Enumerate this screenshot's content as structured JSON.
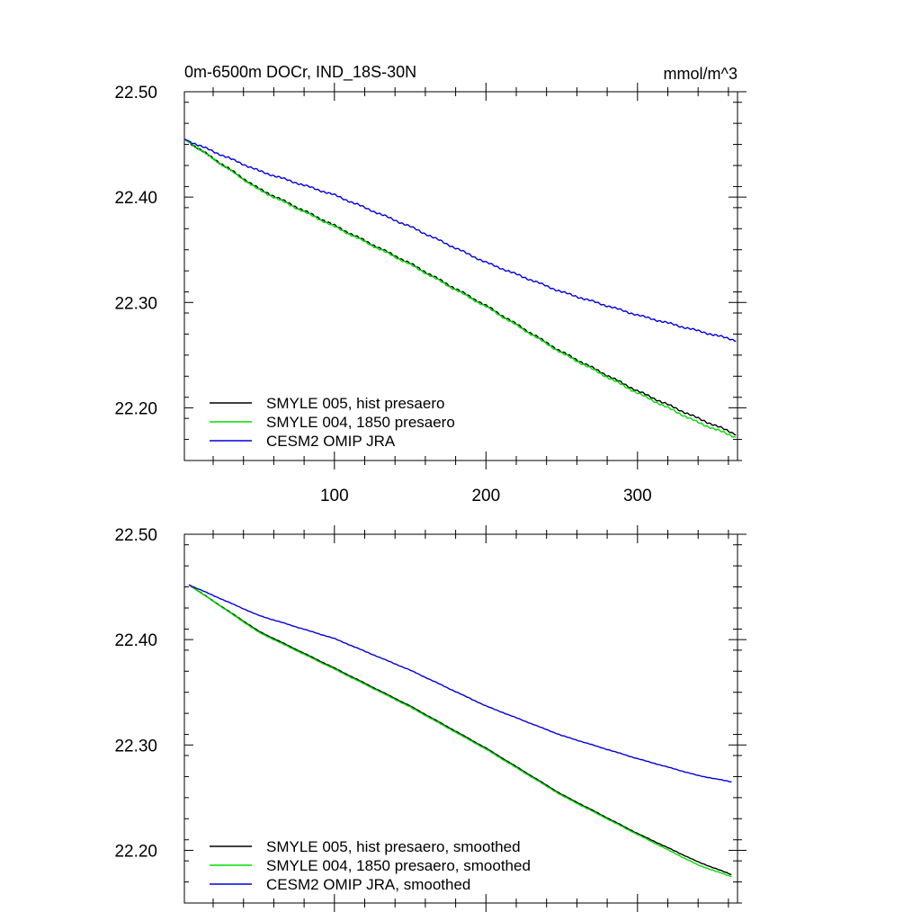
{
  "chart_data": [
    {
      "type": "line",
      "title": "0m-6500m DOCr, IND_18S-30N",
      "units": "mmol/m^3",
      "xlim": [
        1,
        366
      ],
      "ylim": [
        22.15,
        22.5
      ],
      "xticks": [
        100,
        200,
        300
      ],
      "xtick_labels": [
        "100",
        "200",
        "300"
      ],
      "yticks": [
        22.2,
        22.3,
        22.4,
        22.5
      ],
      "ytick_labels": [
        "22.20",
        "22.30",
        "22.40",
        "22.50"
      ],
      "legend_position": "bottom-left",
      "series": [
        {
          "name": "SMYLE 005, hist presaero",
          "color": "#000000",
          "x": [
            1,
            50,
            100,
            150,
            200,
            250,
            300,
            340,
            365
          ],
          "y": [
            22.455,
            22.408,
            22.373,
            22.337,
            22.297,
            22.253,
            22.216,
            22.19,
            22.175
          ]
        },
        {
          "name": "SMYLE 004, 1850 presaero",
          "color": "#00dd00",
          "x": [
            1,
            50,
            100,
            150,
            200,
            250,
            300,
            340,
            365
          ],
          "y": [
            22.455,
            22.407,
            22.372,
            22.336,
            22.296,
            22.252,
            22.214,
            22.186,
            22.172
          ]
        },
        {
          "name": "CESM2 OMIP JRA",
          "color": "#0000dd",
          "x": [
            1,
            50,
            100,
            150,
            200,
            250,
            300,
            340,
            365
          ],
          "y": [
            22.455,
            22.425,
            22.402,
            22.372,
            22.338,
            22.31,
            22.288,
            22.273,
            22.264
          ]
        }
      ]
    },
    {
      "type": "line",
      "title": "",
      "units": "",
      "xlim": [
        1,
        366
      ],
      "ylim": [
        22.15,
        22.5
      ],
      "xticks": [
        100,
        200,
        300
      ],
      "xtick_labels": [],
      "yticks": [
        22.2,
        22.3,
        22.4,
        22.5
      ],
      "ytick_labels": [
        "22.20",
        "22.30",
        "22.40",
        "22.50"
      ],
      "legend_position": "bottom-left",
      "series": [
        {
          "name": "SMYLE 005, hist presaero, smoothed",
          "color": "#000000",
          "x": [
            4,
            50,
            100,
            150,
            200,
            250,
            300,
            340,
            362
          ],
          "y": [
            22.452,
            22.408,
            22.373,
            22.337,
            22.297,
            22.253,
            22.216,
            22.189,
            22.177
          ]
        },
        {
          "name": "SMYLE 004, 1850 presaero, smoothed",
          "color": "#00dd00",
          "x": [
            4,
            50,
            100,
            150,
            200,
            250,
            300,
            340,
            362
          ],
          "y": [
            22.452,
            22.407,
            22.372,
            22.336,
            22.296,
            22.252,
            22.215,
            22.186,
            22.175
          ]
        },
        {
          "name": "CESM2 OMIP JRA, smoothed",
          "color": "#0000dd",
          "x": [
            4,
            50,
            100,
            150,
            200,
            250,
            300,
            340,
            362
          ],
          "y": [
            22.452,
            22.423,
            22.401,
            22.371,
            22.337,
            22.309,
            22.287,
            22.271,
            22.265
          ]
        }
      ]
    }
  ]
}
